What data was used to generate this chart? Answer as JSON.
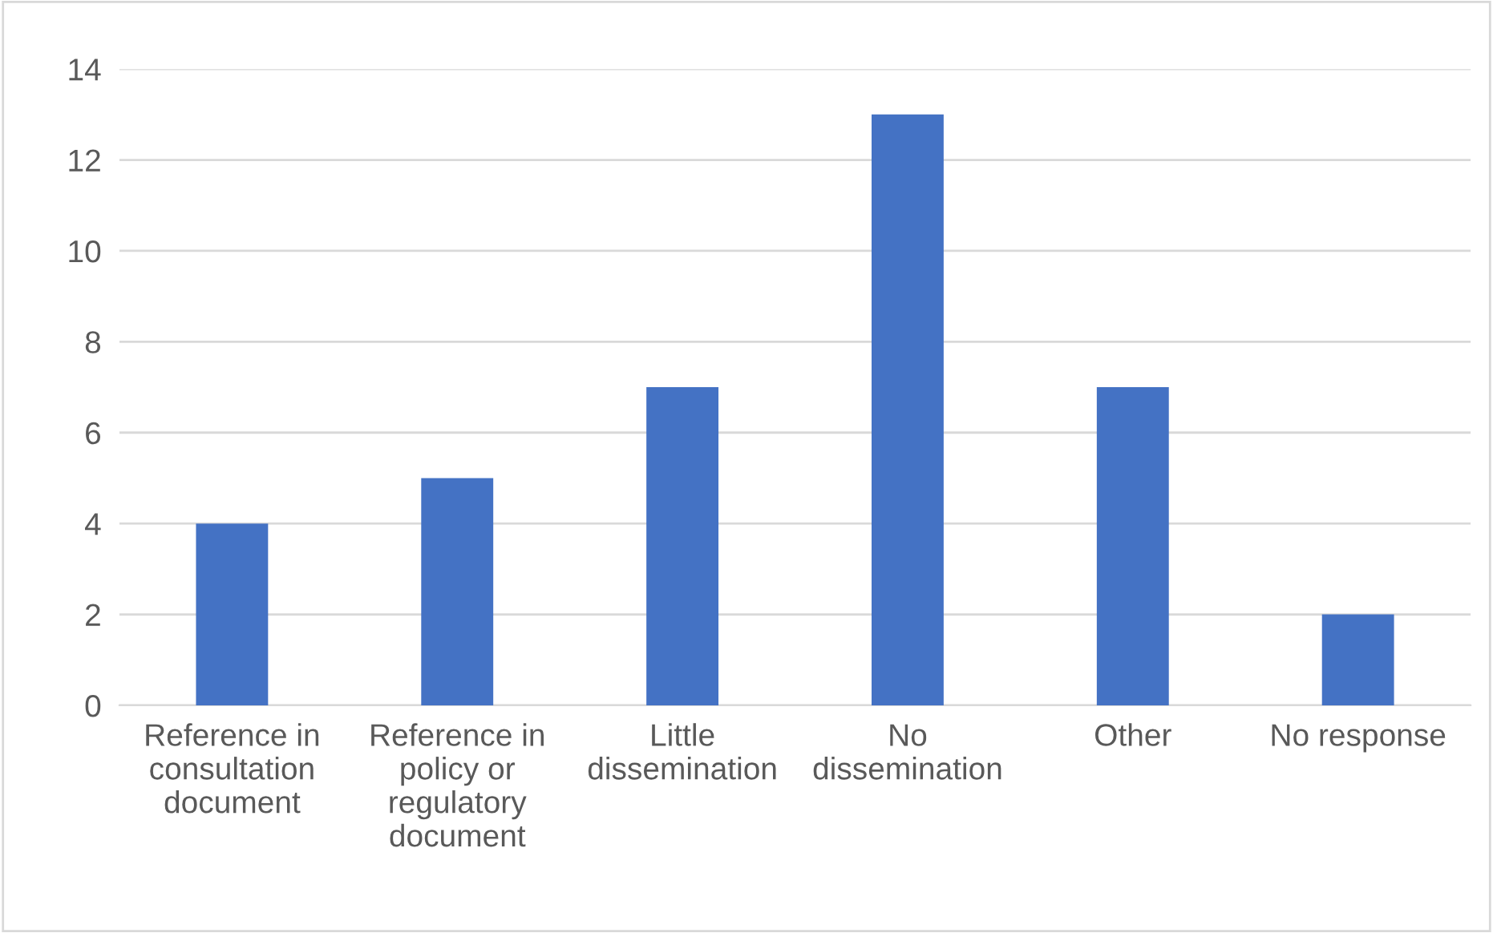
{
  "chart_data": {
    "type": "bar",
    "categories": [
      "Reference in\nconsultation\ndocument",
      "Reference in\npolicy or\nregulatory\ndocument",
      "Little\ndissemination",
      "No\ndissemination",
      "Other",
      "No response"
    ],
    "values": [
      4,
      5,
      7,
      13,
      7,
      2
    ],
    "color": "#4472c4",
    "ylim": [
      0,
      14
    ],
    "yticks": [
      0,
      2,
      4,
      6,
      8,
      10,
      12,
      14
    ],
    "grid": "y"
  }
}
